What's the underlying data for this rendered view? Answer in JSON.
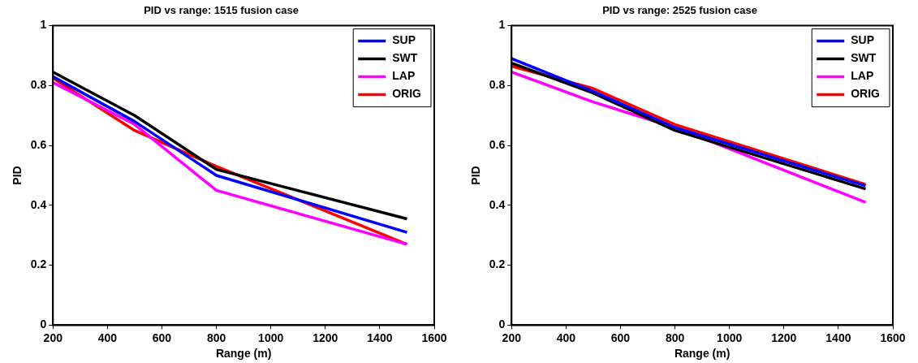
{
  "chart_data": [
    {
      "type": "line",
      "title": "PID vs range: 1515 fusion case",
      "xlabel": "Range (m)",
      "ylabel": "PID",
      "x": [
        200,
        500,
        800,
        1500
      ],
      "xlim": [
        200,
        1600
      ],
      "xticks": [
        200,
        400,
        600,
        800,
        1000,
        1200,
        1400,
        1600
      ],
      "ylim": [
        0,
        1
      ],
      "yticks": [
        0,
        0.2,
        0.4,
        0.6,
        0.8,
        1
      ],
      "grid": false,
      "legend": "top right",
      "marker": "none",
      "line_style": "solid",
      "series": [
        {
          "name": "SUP",
          "color": "#0000ff",
          "values": [
            0.83,
            0.68,
            0.5,
            0.31
          ]
        },
        {
          "name": "SWT",
          "color": "#000000",
          "values": [
            0.845,
            0.7,
            0.52,
            0.355
          ]
        },
        {
          "name": "LAP",
          "color": "#ff00ff",
          "values": [
            0.81,
            0.67,
            0.45,
            0.27
          ]
        },
        {
          "name": "ORIG",
          "color": "#ff0000",
          "values": [
            0.825,
            0.65,
            0.53,
            0.27
          ]
        }
      ]
    },
    {
      "type": "line",
      "title": "PID vs range: 2525 fusion case",
      "xlabel": "Range (m)",
      "ylabel": "PID",
      "x": [
        200,
        500,
        800,
        1500
      ],
      "xlim": [
        200,
        1600
      ],
      "xticks": [
        200,
        400,
        600,
        800,
        1000,
        1200,
        1400,
        1600
      ],
      "ylim": [
        0,
        1
      ],
      "yticks": [
        0,
        0.2,
        0.4,
        0.6,
        0.8,
        1
      ],
      "grid": false,
      "legend": "top right",
      "marker": "none",
      "line_style": "solid",
      "series": [
        {
          "name": "SUP",
          "color": "#0000ff",
          "values": [
            0.89,
            0.78,
            0.66,
            0.465
          ]
        },
        {
          "name": "SWT",
          "color": "#000000",
          "values": [
            0.875,
            0.775,
            0.65,
            0.455
          ]
        },
        {
          "name": "LAP",
          "color": "#ff00ff",
          "values": [
            0.845,
            0.745,
            0.66,
            0.41
          ]
        },
        {
          "name": "ORIG",
          "color": "#ff0000",
          "values": [
            0.865,
            0.79,
            0.67,
            0.47
          ]
        }
      ]
    }
  ]
}
